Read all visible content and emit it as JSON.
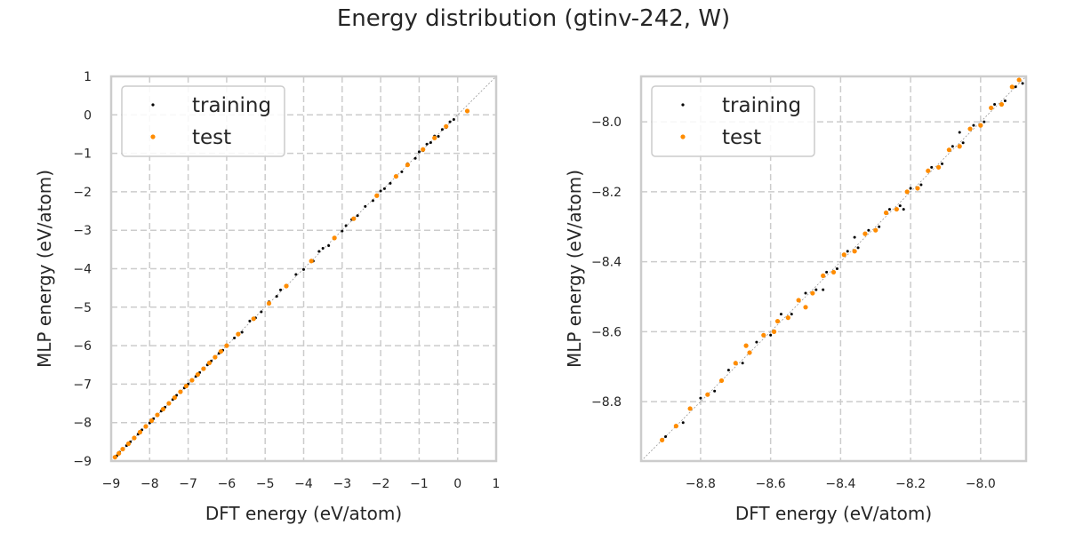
{
  "figure": {
    "title": "Energy distribution (gtinv-242, W)"
  },
  "colors": {
    "training": "#000000",
    "test": "#ff8c00",
    "grid": "#cccccc",
    "frame": "#cccccc",
    "diagonal": "#999999"
  },
  "chart_data": [
    {
      "type": "scatter",
      "title": "",
      "xlabel": "DFT energy (eV/atom)",
      "ylabel": "MLP energy (eV/atom)",
      "xlim": [
        -9,
        1
      ],
      "ylim": [
        -9,
        1
      ],
      "xticks": [
        -9,
        -8,
        -7,
        -6,
        -5,
        -4,
        -3,
        -2,
        -1,
        0,
        1
      ],
      "yticks": [
        -9,
        -8,
        -7,
        -6,
        -5,
        -4,
        -3,
        -2,
        -1,
        0,
        1
      ],
      "xtick_labels": [
        "−9",
        "−8",
        "−7",
        "−6",
        "−5",
        "−4",
        "−3",
        "−2",
        "−1",
        "0",
        "1"
      ],
      "ytick_labels": [
        "−9",
        "−8",
        "−7",
        "−6",
        "−5",
        "−4",
        "−3",
        "−2",
        "−1",
        "0",
        "1"
      ],
      "grid": true,
      "legend_position": "top-left",
      "reference_line": "y = x",
      "series": [
        {
          "name": "training",
          "color": "#000000",
          "x": [
            -8.91,
            -8.85,
            -8.78,
            -8.7,
            -8.6,
            -8.5,
            -8.4,
            -8.3,
            -8.2,
            -8.1,
            -8.0,
            -7.9,
            -7.8,
            -7.7,
            -7.6,
            -7.5,
            -7.4,
            -7.3,
            -7.2,
            -7.1,
            -7.0,
            -6.9,
            -6.8,
            -6.7,
            -6.6,
            -6.5,
            -6.4,
            -6.3,
            -6.2,
            -6.1,
            -6.0,
            -5.8,
            -5.6,
            -5.4,
            -5.25,
            -5.1,
            -4.9,
            -4.7,
            -4.6,
            -4.45,
            -4.2,
            -4.0,
            -3.75,
            -3.6,
            -3.5,
            -3.35,
            -3.2,
            -3.0,
            -2.9,
            -2.75,
            -2.6,
            -2.4,
            -2.2,
            -2.0,
            -1.9,
            -1.75,
            -1.6,
            -1.45,
            -1.3,
            -1.1,
            -1.0,
            -0.9,
            -0.8,
            -0.7,
            -0.6,
            -0.5,
            -0.4,
            -0.3,
            -0.2,
            -0.1
          ],
          "y": [
            -8.9,
            -8.86,
            -8.77,
            -8.71,
            -8.6,
            -8.5,
            -8.41,
            -8.3,
            -8.19,
            -8.1,
            -8.01,
            -7.9,
            -7.81,
            -7.7,
            -7.6,
            -7.51,
            -7.4,
            -7.29,
            -7.2,
            -7.1,
            -7.0,
            -6.91,
            -6.8,
            -6.7,
            -6.61,
            -6.5,
            -6.4,
            -6.31,
            -6.2,
            -6.12,
            -6.02,
            -5.8,
            -5.65,
            -5.36,
            -5.28,
            -5.12,
            -4.86,
            -4.72,
            -4.55,
            -4.46,
            -4.15,
            -4.02,
            -3.8,
            -3.55,
            -3.47,
            -3.4,
            -3.22,
            -3.02,
            -2.88,
            -2.72,
            -2.62,
            -2.38,
            -2.23,
            -1.98,
            -1.92,
            -1.78,
            -1.58,
            -1.48,
            -1.27,
            -1.13,
            -0.96,
            -0.93,
            -0.76,
            -0.72,
            -0.55,
            -0.56,
            -0.38,
            -0.33,
            -0.18,
            -0.12
          ]
        },
        {
          "name": "test",
          "color": "#ff8c00",
          "x": [
            -8.9,
            -8.8,
            -8.7,
            -8.55,
            -8.4,
            -8.25,
            -8.1,
            -7.95,
            -7.8,
            -7.65,
            -7.5,
            -7.35,
            -7.2,
            -7.05,
            -6.9,
            -6.75,
            -6.6,
            -6.45,
            -6.3,
            -6.15,
            -6.0,
            -5.7,
            -5.3,
            -4.9,
            -4.45,
            -3.8,
            -3.2,
            -2.7,
            -2.1,
            -1.6,
            -1.3,
            -0.9,
            -0.6,
            -0.3,
            0.25
          ],
          "y": [
            -8.9,
            -8.8,
            -8.69,
            -8.55,
            -8.4,
            -8.25,
            -8.1,
            -7.95,
            -7.8,
            -7.65,
            -7.5,
            -7.35,
            -7.2,
            -7.05,
            -6.9,
            -6.75,
            -6.6,
            -6.45,
            -6.3,
            -6.15,
            -6.0,
            -5.7,
            -5.3,
            -4.9,
            -4.45,
            -3.8,
            -3.2,
            -2.7,
            -2.1,
            -1.6,
            -1.3,
            -0.9,
            -0.6,
            -0.3,
            0.1
          ]
        }
      ]
    },
    {
      "type": "scatter",
      "title": "",
      "xlabel": "DFT energy (eV/atom)",
      "ylabel": "MLP energy (eV/atom)",
      "xlim": [
        -8.97,
        -7.87
      ],
      "ylim": [
        -8.97,
        -7.87
      ],
      "xticks": [
        -8.8,
        -8.6,
        -8.4,
        -8.2,
        -8.0
      ],
      "yticks": [
        -8.8,
        -8.6,
        -8.4,
        -8.2,
        -8.0
      ],
      "xtick_labels": [
        "−8.8",
        "−8.6",
        "−8.4",
        "−8.2",
        "−8.0"
      ],
      "ytick_labels": [
        "−8.8",
        "−8.6",
        "−8.4",
        "−8.2",
        "−8.0"
      ],
      "grid": true,
      "legend_position": "top-left",
      "reference_line": "y = x",
      "series": [
        {
          "name": "training",
          "color": "#000000",
          "x": [
            -8.9,
            -8.85,
            -8.8,
            -8.76,
            -8.72,
            -8.68,
            -8.64,
            -8.6,
            -8.57,
            -8.54,
            -8.5,
            -8.47,
            -8.44,
            -8.41,
            -8.38,
            -8.35,
            -8.32,
            -8.29,
            -8.26,
            -8.23,
            -8.2,
            -8.17,
            -8.14,
            -8.11,
            -8.08,
            -8.05,
            -8.02,
            -7.99,
            -7.96,
            -7.93,
            -7.9,
            -7.88,
            -8.45,
            -8.36,
            -8.22,
            -8.06
          ],
          "y": [
            -8.9,
            -8.86,
            -8.79,
            -8.77,
            -8.71,
            -8.69,
            -8.63,
            -8.61,
            -8.55,
            -8.55,
            -8.49,
            -8.48,
            -8.43,
            -8.42,
            -8.37,
            -8.36,
            -8.31,
            -8.3,
            -8.25,
            -8.24,
            -8.19,
            -8.18,
            -8.13,
            -8.12,
            -8.07,
            -8.06,
            -8.01,
            -8.0,
            -7.95,
            -7.94,
            -7.9,
            -7.89,
            -8.48,
            -8.33,
            -8.25,
            -8.03
          ]
        },
        {
          "name": "test",
          "color": "#ff8c00",
          "x": [
            -8.91,
            -8.87,
            -8.83,
            -8.78,
            -8.74,
            -8.7,
            -8.66,
            -8.62,
            -8.58,
            -8.55,
            -8.52,
            -8.48,
            -8.45,
            -8.42,
            -8.39,
            -8.36,
            -8.33,
            -8.3,
            -8.27,
            -8.24,
            -8.21,
            -8.18,
            -8.15,
            -8.12,
            -8.09,
            -8.06,
            -8.03,
            -8.0,
            -7.97,
            -7.94,
            -7.91,
            -7.89,
            -8.67,
            -8.59,
            -8.5
          ],
          "y": [
            -8.91,
            -8.87,
            -8.82,
            -8.78,
            -8.74,
            -8.69,
            -8.66,
            -8.61,
            -8.57,
            -8.56,
            -8.51,
            -8.49,
            -8.44,
            -8.43,
            -8.38,
            -8.37,
            -8.32,
            -8.31,
            -8.26,
            -8.25,
            -8.2,
            -8.19,
            -8.14,
            -8.13,
            -8.08,
            -8.07,
            -8.02,
            -8.01,
            -7.96,
            -7.95,
            -7.9,
            -7.88,
            -8.64,
            -8.6,
            -8.53
          ]
        }
      ]
    }
  ]
}
